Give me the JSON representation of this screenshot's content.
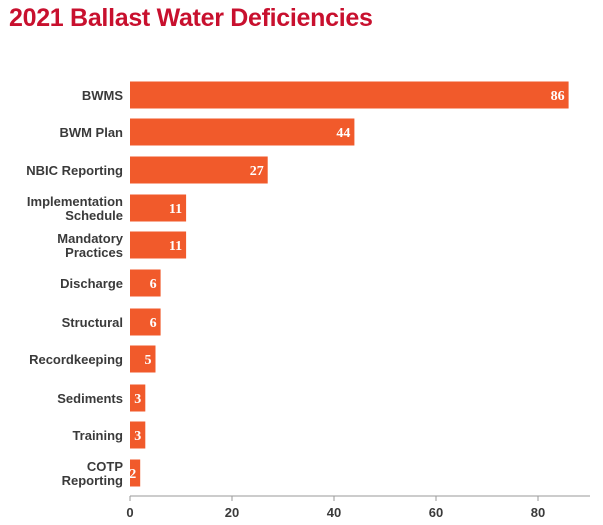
{
  "chart_data": {
    "type": "bar",
    "orientation": "horizontal",
    "title": "2021 Ballast Water Deficiencies",
    "categories": [
      [
        "BWMS"
      ],
      [
        "BWM Plan"
      ],
      [
        "NBIC Reporting"
      ],
      [
        "Implementation",
        "Schedule"
      ],
      [
        "Mandatory",
        "Practices"
      ],
      [
        "Discharge"
      ],
      [
        "Structural"
      ],
      [
        "Recordkeeping"
      ],
      [
        "Sediments"
      ],
      [
        "Training"
      ],
      [
        "COTP",
        "Reporting"
      ]
    ],
    "values": [
      86,
      44,
      27,
      11,
      11,
      6,
      6,
      5,
      3,
      3,
      2
    ],
    "xticks": [
      0,
      20,
      40,
      60,
      80
    ],
    "xlim": [
      0,
      90
    ],
    "colors": {
      "bar": "#f15a2b",
      "title": "#c8102e",
      "axis": "#9a9a9a"
    }
  }
}
